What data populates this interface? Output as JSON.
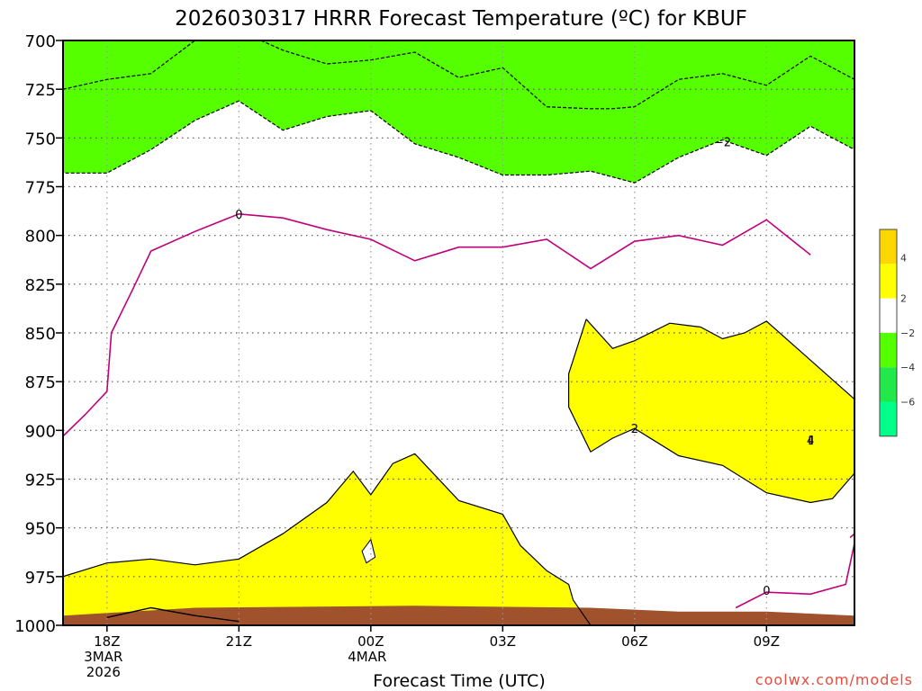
{
  "chart_data": {
    "type": "contour",
    "title": "2026030317 HRRR Forecast Temperature (ºC) for KBUF",
    "xlabel": "Forecast Time (UTC)",
    "ylabel": "",
    "credit": "coolwx.com/models",
    "y_axis": {
      "quantity": "pressure (hPa)",
      "range": [
        1000,
        700
      ],
      "ticks": [
        700,
        725,
        750,
        775,
        800,
        825,
        850,
        875,
        900,
        925,
        950,
        975,
        1000
      ]
    },
    "x_axis": {
      "range": [
        "2026-03-03 17Z",
        "2026-03-04 11Z"
      ],
      "ticks": [
        {
          "x": "2026-03-03 18Z",
          "lines": [
            "18Z",
            "3MAR",
            "2026"
          ]
        },
        {
          "x": "2026-03-03 21Z",
          "lines": [
            "21Z"
          ]
        },
        {
          "x": "2026-03-04 00Z",
          "lines": [
            "00Z",
            "4MAR"
          ]
        },
        {
          "x": "2026-03-04 03Z",
          "lines": [
            "03Z"
          ]
        },
        {
          "x": "2026-03-04 06Z",
          "lines": [
            "06Z"
          ]
        },
        {
          "x": "2026-03-04 09Z",
          "lines": [
            "09Z"
          ]
        }
      ]
    },
    "grid": true,
    "colorbar": {
      "placement": "right",
      "bands": [
        {
          "range": "4 to 6",
          "color": "#ffd700"
        },
        {
          "range": "2 to 4",
          "color": "#ffff00"
        },
        {
          "range": "-2 to 2",
          "color": "#ffffff"
        },
        {
          "range": "-4 to -2",
          "color": "#55ff00"
        },
        {
          "range": "-6 to -4",
          "color": "#22e84a"
        },
        {
          "range": "below -6",
          "color": "#00ff88"
        }
      ],
      "tick_labels": [
        "4",
        "2",
        "−2",
        "−4",
        "−6"
      ]
    },
    "surface_color": "#a0522d",
    "contours": [
      {
        "level": -4,
        "fill": "#00ff88",
        "label": "",
        "points": [
          [
            17,
            700
          ],
          [
            17,
            725
          ],
          [
            18,
            720
          ],
          [
            19,
            717
          ],
          [
            20,
            700
          ],
          [
            21.5,
            700
          ],
          [
            22,
            705
          ],
          [
            23,
            712
          ],
          [
            24,
            710
          ],
          [
            25,
            706
          ],
          [
            26,
            719
          ],
          [
            27,
            714
          ],
          [
            28,
            734
          ],
          [
            29,
            735
          ],
          [
            29.5,
            735
          ],
          [
            30,
            734
          ],
          [
            31,
            720
          ],
          [
            32,
            717
          ],
          [
            33,
            723
          ],
          [
            34,
            708
          ],
          [
            35,
            720
          ],
          [
            35,
            700
          ]
        ]
      },
      {
        "level": -2,
        "fill": "#55ff00",
        "label": "−2",
        "label_at": [
          32,
          752
        ],
        "points": [
          [
            17,
            700
          ],
          [
            17,
            768
          ],
          [
            18,
            768
          ],
          [
            19,
            756
          ],
          [
            20,
            741
          ],
          [
            21,
            731
          ],
          [
            22,
            746
          ],
          [
            23,
            739
          ],
          [
            24,
            736
          ],
          [
            25,
            753
          ],
          [
            26,
            760
          ],
          [
            27,
            769
          ],
          [
            28,
            769
          ],
          [
            29,
            767
          ],
          [
            30,
            773
          ],
          [
            31,
            760
          ],
          [
            32,
            751
          ],
          [
            33,
            759
          ],
          [
            34,
            744
          ],
          [
            35,
            756
          ],
          [
            35,
            700
          ]
        ]
      },
      {
        "level": 0,
        "fill": "none",
        "color": "#c0007a",
        "label": "0",
        "label_at": [
          21,
          789
        ],
        "points": [
          [
            17,
            903
          ],
          [
            17.5,
            892
          ],
          [
            18,
            880
          ],
          [
            18.1,
            850
          ],
          [
            18.6,
            827
          ],
          [
            19,
            808
          ],
          [
            20,
            798
          ],
          [
            21,
            789
          ],
          [
            22,
            791
          ],
          [
            23,
            797
          ],
          [
            24,
            802
          ],
          [
            25,
            813
          ],
          [
            26,
            806
          ],
          [
            27,
            806
          ],
          [
            28,
            802
          ],
          [
            29,
            817
          ],
          [
            30,
            803
          ],
          [
            31,
            800
          ],
          [
            32,
            805
          ],
          [
            33,
            792
          ],
          [
            34,
            810
          ]
        ]
      },
      {
        "level": 0,
        "fill": "none",
        "color": "#c0007a",
        "label": "0",
        "label_at": [
          33,
          982
        ],
        "points": [
          [
            32.3,
            991
          ],
          [
            33,
            983
          ],
          [
            34,
            984
          ],
          [
            34.8,
            979
          ],
          [
            35,
            958
          ],
          [
            35,
            953
          ],
          [
            34.9,
            955
          ]
        ]
      },
      {
        "level": 2,
        "fill": "#ffff00",
        "label": "",
        "points": [
          [
            17,
            1000
          ],
          [
            17,
            975
          ],
          [
            18,
            968
          ],
          [
            19,
            966
          ],
          [
            20,
            969
          ],
          [
            21,
            966
          ],
          [
            22,
            953
          ],
          [
            23,
            937
          ],
          [
            23.6,
            921
          ],
          [
            24,
            933
          ],
          [
            24.5,
            917
          ],
          [
            25,
            912
          ],
          [
            25.5,
            924
          ],
          [
            26,
            936
          ],
          [
            27,
            943
          ],
          [
            27.4,
            959
          ],
          [
            28,
            972
          ],
          [
            28.5,
            979
          ],
          [
            28.6,
            987
          ],
          [
            29,
            1000
          ]
        ]
      },
      {
        "level": 2,
        "fill": "#ffff00",
        "label": "2",
        "label_at": [
          30,
          899
        ],
        "points": [
          [
            28.9,
            843
          ],
          [
            29.5,
            858
          ],
          [
            30,
            854
          ],
          [
            30.8,
            845
          ],
          [
            31.5,
            847
          ],
          [
            32,
            853
          ],
          [
            32.5,
            850
          ],
          [
            33,
            844
          ],
          [
            33.8,
            860
          ],
          [
            35,
            884
          ],
          [
            35,
            922
          ],
          [
            34.5,
            935
          ],
          [
            34,
            937
          ],
          [
            33,
            932
          ],
          [
            32,
            918
          ],
          [
            31,
            913
          ],
          [
            30,
            899
          ],
          [
            29.5,
            904
          ],
          [
            29,
            911
          ],
          [
            28.5,
            888
          ],
          [
            28.5,
            871
          ]
        ]
      },
      {
        "level": 4,
        "fill": "#ffd700",
        "label": "4",
        "label_at": [
          34,
          905
        ],
        "points": [
          [
            33.98,
            903
          ],
          [
            34.04,
            903
          ],
          [
            34.04,
            907
          ],
          [
            33.98,
            907
          ]
        ]
      }
    ],
    "small_features": [
      {
        "type": "closed",
        "fill": "#ffffff",
        "points": [
          [
            23.8,
            962
          ],
          [
            24,
            956
          ],
          [
            24.1,
            965
          ],
          [
            23.9,
            968
          ]
        ]
      },
      {
        "type": "open",
        "color": "#000000",
        "points": [
          [
            18,
            996
          ],
          [
            19,
            991
          ],
          [
            20,
            995
          ],
          [
            21,
            998
          ]
        ]
      }
    ]
  }
}
